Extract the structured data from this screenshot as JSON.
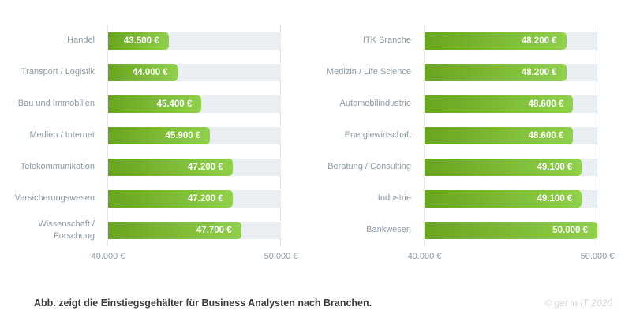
{
  "caption": "Abb. zeigt die Einstiegsgehälter für Business Analysten nach Branchen.",
  "copyright": "© get in IT 2020",
  "colors": {
    "bar_gradient_start": "#69a51f",
    "bar_gradient_end": "#90d04a",
    "track": "#eaeff3",
    "axis_line": "#e2e8ec",
    "limit_line": "#c9d6de",
    "label_text": "#8d9aa6",
    "value_text": "#ffffff",
    "caption_text": "#3b3b3b",
    "copyright_text": "#d2d6db"
  },
  "chart_data": [
    {
      "type": "bar",
      "orientation": "horizontal",
      "title": "",
      "xlabel": "",
      "ylabel": "",
      "xlim": [
        40000,
        50000
      ],
      "grid": false,
      "legend": false,
      "categories": [
        "Handel",
        "Transport / Logistik",
        "Bau und Immobilien",
        "Medien / Internet",
        "Telekommunikation",
        "Versicherungswesen",
        "Wissenschaft / Forschung"
      ],
      "values": [
        43500,
        44000,
        45400,
        45900,
        47200,
        47200,
        47700
      ],
      "value_labels": [
        "43.500 €",
        "44.000 €",
        "45.400 €",
        "45.900 €",
        "47.200 €",
        "47.200 €",
        "47.700 €"
      ],
      "ticks": [
        {
          "value": 40000,
          "label": "40.000 €"
        },
        {
          "value": 50000,
          "label": "50.000 €"
        }
      ]
    },
    {
      "type": "bar",
      "orientation": "horizontal",
      "title": "",
      "xlabel": "",
      "ylabel": "",
      "xlim": [
        40000,
        50000
      ],
      "grid": false,
      "legend": false,
      "categories": [
        "ITK Branche",
        "Medizin / Life Science",
        "Automobilindustrie",
        "Energiewirtschaft",
        "Beratung / Consulting",
        "Industrie",
        "Bankwesen"
      ],
      "values": [
        48200,
        48200,
        48600,
        48600,
        49100,
        49100,
        50000
      ],
      "value_labels": [
        "48.200 €",
        "48.200 €",
        "48.600 €",
        "48.600 €",
        "49.100 €",
        "49.100 €",
        "50.000 €"
      ],
      "ticks": [
        {
          "value": 40000,
          "label": "40.000 €"
        },
        {
          "value": 50000,
          "label": "50.000 €"
        }
      ]
    }
  ]
}
